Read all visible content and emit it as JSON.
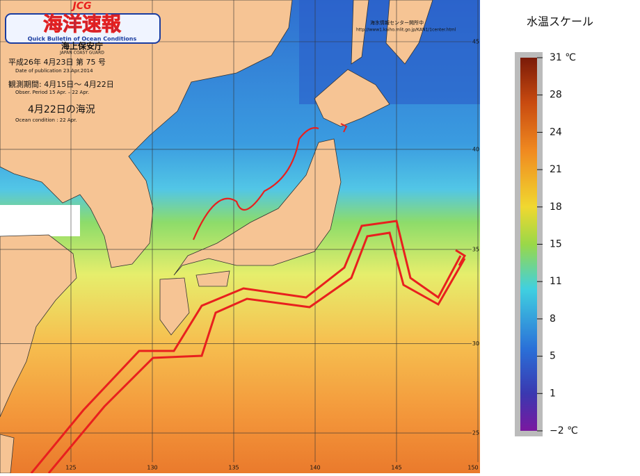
{
  "header": {
    "logo": "JCG",
    "title": "海洋速報",
    "subtitle": "Quick Bulletin of Ocean Conditions",
    "agency": "海上保安庁",
    "agency_en": "JAPAN COAST GUARD"
  },
  "issue": {
    "number_line": "平成26年  4月23日 第 75 号",
    "date_en": "Date of publication   23.Apr.2014",
    "period": "観測期間:  4月15日～  4月22日",
    "period_en": "Obser. Period   15 Apr. – 22 Apr.",
    "condition": "4月22日の海況",
    "condition_en": "Ocean condition :  22 Apr."
  },
  "notice": {
    "text": "海氷情報センター開所中",
    "url": "http://www1.kaiho.mlit.go.jp/KAN1/1center.html"
  },
  "map": {
    "lon_ticks": [
      125,
      130,
      135,
      140,
      145,
      150
    ],
    "lat_ticks": [
      45,
      40,
      35,
      30,
      25
    ]
  },
  "scale": {
    "title": "水温スケール",
    "ticks": [
      {
        "value": 31,
        "label": "31 ℃"
      },
      28,
      24,
      21,
      18,
      15,
      11,
      8,
      5,
      1,
      {
        "value": -2,
        "label": "−2 ℃"
      }
    ]
  }
}
